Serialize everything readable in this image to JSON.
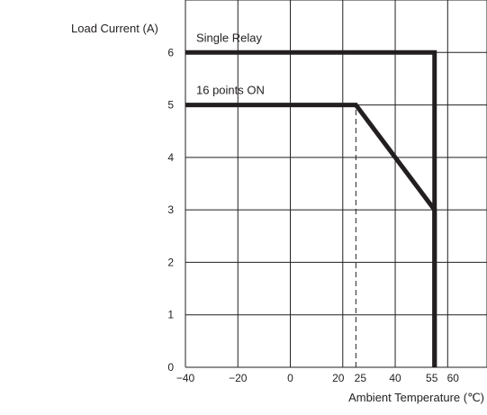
{
  "chart_data": {
    "type": "line",
    "ylabel": "Load Current (A)",
    "xlabel": "Ambient Temperature (℃)",
    "xticks": [
      {
        "value": -40,
        "label": "−40"
      },
      {
        "value": -20,
        "label": "−20"
      },
      {
        "value": 0,
        "label": "0"
      },
      {
        "value": 20,
        "label": "20"
      },
      {
        "value": 25,
        "label": "25"
      },
      {
        "value": 40,
        "label": "40"
      },
      {
        "value": 55,
        "label": "55"
      },
      {
        "value": 60,
        "label": "60"
      }
    ],
    "yticks": [
      0,
      1,
      2,
      3,
      4,
      5,
      6
    ],
    "xlim": [
      -40,
      75
    ],
    "ylim": [
      0,
      7
    ],
    "x_gridlines": [
      -40,
      -20,
      0,
      20,
      40,
      60,
      75
    ],
    "y_gridlines": [
      0,
      1,
      2,
      3,
      4,
      5,
      6,
      7
    ],
    "grid": true,
    "series": [
      {
        "name": "Single Relay",
        "points": [
          [
            -40,
            6
          ],
          [
            55,
            6
          ],
          [
            55,
            0
          ]
        ]
      },
      {
        "name": "16 points ON",
        "points": [
          [
            -40,
            5
          ],
          [
            25,
            5
          ],
          [
            55,
            3
          ],
          [
            55,
            0
          ]
        ]
      }
    ],
    "reference_line": {
      "x": 25,
      "y_from": 0,
      "y_to": 5,
      "style": "dashed"
    },
    "colors": {
      "series": "#231f20",
      "grid": "#231f20",
      "text": "#231f20"
    }
  }
}
